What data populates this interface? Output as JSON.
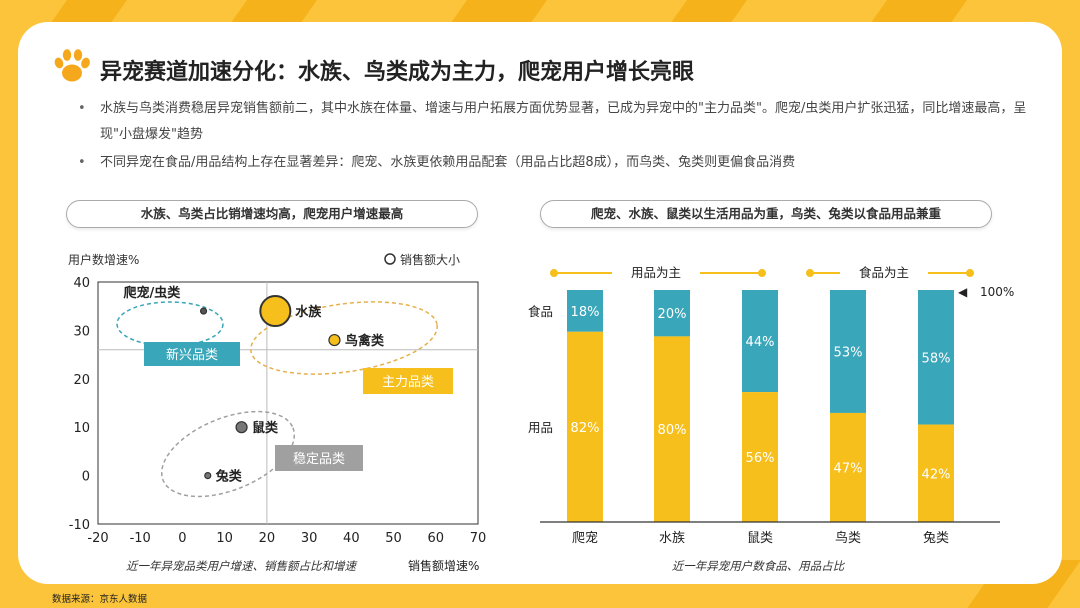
{
  "page": {
    "title": "异宠赛道加速分化：水族、鸟类成为主力，爬宠用户增长亮眼",
    "bullets": [
      "水族与鸟类消费稳居异宠销售额前二，其中水族在体量、增速与用户拓展方面优势显著，已成为异宠中的\"主力品类\"。爬宠/虫类用户扩张迅猛，同比增速最高，呈现\"小盘爆发\"趋势",
      "不同异宠在食品/用品结构上存在显著差异：爬宠、水族更依赖用品配套（用品占比超8成），而鸟类、兔类则更偏食品消费"
    ],
    "source": "数据来源：京东人数据"
  },
  "colors": {
    "accent": "#fbc43a",
    "teal": "#3aa6b9",
    "yellow": "#f6bf1c",
    "grey": "#9e9e9e"
  },
  "chart_data": [
    {
      "type": "scatter",
      "pill_title": "水族、鸟类占比销增速均高，爬宠用户增速最高",
      "ylabel": "用户数增速%",
      "xlabel": "销售额增速%",
      "caption": "近一年异宠品类用户增速、销售额占比和增速",
      "size_legend": "销售额大小",
      "xlim": [
        -20,
        70
      ],
      "ylim": [
        -10,
        40
      ],
      "xticks": [
        -20,
        -10,
        0,
        10,
        20,
        30,
        40,
        50,
        60,
        70
      ],
      "yticks": [
        -10,
        0,
        10,
        20,
        30,
        40
      ],
      "reference_lines": {
        "x": 20,
        "y": 26
      },
      "points": [
        {
          "name": "爬宠/虫类",
          "x": 5,
          "y": 34,
          "size": "small",
          "color": "#555555"
        },
        {
          "name": "水族",
          "x": 22,
          "y": 34,
          "size": "large",
          "color": "#f6bf1c"
        },
        {
          "name": "鸟禽类",
          "x": 36,
          "y": 28,
          "size": "medium",
          "color": "#f6bf1c"
        },
        {
          "name": "鼠类",
          "x": 14,
          "y": 10,
          "size": "medium",
          "color": "#777777"
        },
        {
          "name": "兔类",
          "x": 6,
          "y": 0,
          "size": "small",
          "color": "#777777"
        }
      ],
      "groups": [
        {
          "label": "新兴品类",
          "color": "#3aa6b9"
        },
        {
          "label": "主力品类",
          "color": "#f6bf1c"
        },
        {
          "label": "稳定品类",
          "color": "#9e9e9e"
        }
      ]
    },
    {
      "type": "bar",
      "stacked": true,
      "pill_title": "爬宠、水族、鼠类以生活用品为重，鸟类、兔类以食品用品兼重",
      "caption": "近一年异宠用户数食品、用品占比",
      "categories": [
        "爬宠",
        "水族",
        "鼠类",
        "鸟类",
        "兔类"
      ],
      "series": [
        {
          "name": "食品",
          "color": "#3aa6b9",
          "values": [
            18,
            20,
            44,
            53,
            58
          ]
        },
        {
          "name": "用品",
          "color": "#f6bf1c",
          "values": [
            82,
            80,
            56,
            47,
            42
          ]
        }
      ],
      "ylim": [
        0,
        100
      ],
      "top_annotation": "100%",
      "groups": [
        {
          "label": "用品为主"
        },
        {
          "label": "食品为主"
        }
      ]
    }
  ]
}
